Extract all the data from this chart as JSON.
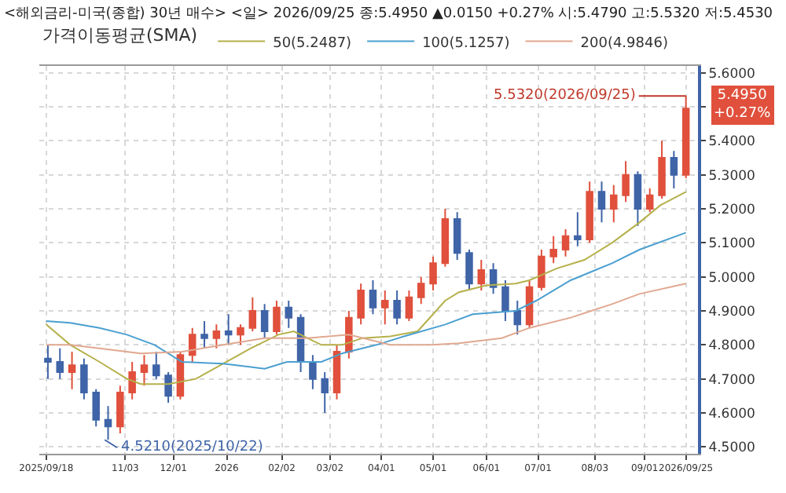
{
  "chart_data": {
    "type": "candlestick",
    "title": "<해외금리-미국(종합) 30년 매수> <일> 2026/09/25 종:5.4950 ▲0.0150 +0.27% 시:5.4790 고:5.5320 저:5.4530",
    "legend_title": "가격이동평균(SMA)",
    "x": [
      "2025-09-19",
      "2025-09-26",
      "2025-10-03",
      "2025-10-10",
      "2025-10-17",
      "2025-10-24",
      "2025-10-31",
      "2025-11-07",
      "2025-11-14",
      "2025-11-21",
      "2025-11-28",
      "2025-12-05",
      "2025-12-12",
      "2025-12-19",
      "2025-12-26",
      "2026-01-02",
      "2026-01-09",
      "2026-01-16",
      "2026-01-23",
      "2026-01-30",
      "2026-02-06",
      "2026-02-13",
      "2026-02-20",
      "2026-02-27",
      "2026-03-06",
      "2026-03-13",
      "2026-03-20",
      "2026-03-27",
      "2026-04-03",
      "2026-04-10",
      "2026-04-17",
      "2026-04-24",
      "2026-05-01",
      "2026-05-08",
      "2026-05-15",
      "2026-05-22",
      "2026-05-29",
      "2026-06-05",
      "2026-06-12",
      "2026-06-19",
      "2026-06-26",
      "2026-07-03",
      "2026-07-10",
      "2026-07-17",
      "2026-07-24",
      "2026-07-31",
      "2026-08-07",
      "2026-08-14",
      "2026-08-21",
      "2026-08-28",
      "2026-09-04",
      "2026-09-11",
      "2026-09-18",
      "2026-09-25"
    ],
    "ohlc": [
      [
        4.76,
        4.8,
        4.7,
        4.75
      ],
      [
        4.75,
        4.79,
        4.7,
        4.72
      ],
      [
        4.72,
        4.78,
        4.67,
        4.74
      ],
      [
        4.74,
        4.76,
        4.64,
        4.66
      ],
      [
        4.66,
        4.67,
        4.56,
        4.58
      ],
      [
        4.58,
        4.62,
        4.521,
        4.56
      ],
      [
        4.56,
        4.68,
        4.54,
        4.66
      ],
      [
        4.66,
        4.75,
        4.64,
        4.72
      ],
      [
        4.72,
        4.77,
        4.68,
        4.74
      ],
      [
        4.74,
        4.78,
        4.7,
        4.71
      ],
      [
        4.71,
        4.72,
        4.63,
        4.65
      ],
      [
        4.65,
        4.78,
        4.64,
        4.77
      ],
      [
        4.77,
        4.85,
        4.75,
        4.83
      ],
      [
        4.83,
        4.87,
        4.79,
        4.82
      ],
      [
        4.82,
        4.86,
        4.79,
        4.84
      ],
      [
        4.84,
        4.89,
        4.8,
        4.83
      ],
      [
        4.83,
        4.86,
        4.8,
        4.85
      ],
      [
        4.85,
        4.94,
        4.84,
        4.9
      ],
      [
        4.9,
        4.92,
        4.82,
        4.84
      ],
      [
        4.84,
        4.93,
        4.83,
        4.91
      ],
      [
        4.91,
        4.93,
        4.85,
        4.88
      ],
      [
        4.88,
        4.89,
        4.72,
        4.75
      ],
      [
        4.75,
        4.77,
        4.67,
        4.7
      ],
      [
        4.7,
        4.72,
        4.6,
        4.66
      ],
      [
        4.66,
        4.8,
        4.64,
        4.78
      ],
      [
        4.78,
        4.9,
        4.76,
        4.88
      ],
      [
        4.88,
        4.98,
        4.86,
        4.96
      ],
      [
        4.96,
        4.99,
        4.89,
        4.91
      ],
      [
        4.91,
        4.96,
        4.86,
        4.93
      ],
      [
        4.93,
        4.96,
        4.86,
        4.88
      ],
      [
        4.88,
        4.96,
        4.87,
        4.94
      ],
      [
        4.94,
        5.0,
        4.92,
        4.98
      ],
      [
        4.98,
        5.06,
        4.96,
        5.04
      ],
      [
        5.04,
        5.2,
        5.03,
        5.17
      ],
      [
        5.17,
        5.19,
        5.05,
        5.07
      ],
      [
        5.07,
        5.08,
        4.96,
        4.98
      ],
      [
        4.98,
        5.05,
        4.96,
        5.02
      ],
      [
        5.02,
        5.04,
        4.95,
        4.97
      ],
      [
        4.97,
        4.99,
        4.87,
        4.9
      ],
      [
        4.9,
        4.93,
        4.83,
        4.86
      ],
      [
        4.86,
        4.99,
        4.85,
        4.97
      ],
      [
        4.97,
        5.08,
        4.96,
        5.06
      ],
      [
        5.06,
        5.12,
        5.04,
        5.08
      ],
      [
        5.08,
        5.14,
        5.06,
        5.12
      ],
      [
        5.12,
        5.19,
        5.09,
        5.11
      ],
      [
        5.11,
        5.28,
        5.1,
        5.25
      ],
      [
        5.25,
        5.28,
        5.16,
        5.2
      ],
      [
        5.2,
        5.27,
        5.16,
        5.24
      ],
      [
        5.24,
        5.34,
        5.22,
        5.3
      ],
      [
        5.3,
        5.31,
        5.15,
        5.2
      ],
      [
        5.2,
        5.26,
        5.19,
        5.24
      ],
      [
        5.24,
        5.4,
        5.23,
        5.35
      ],
      [
        5.35,
        5.37,
        5.26,
        5.3
      ],
      [
        5.3,
        5.532,
        5.29,
        5.495
      ]
    ],
    "colors": [
      "#3f64a8",
      "#3f64a8",
      "#e0503c",
      "#3f64a8",
      "#3f64a8",
      "#3f64a8",
      "#e0503c",
      "#e0503c",
      "#e0503c",
      "#3f64a8",
      "#3f64a8",
      "#e0503c",
      "#e0503c",
      "#3f64a8",
      "#e0503c",
      "#3f64a8",
      "#e0503c",
      "#e0503c",
      "#3f64a8",
      "#e0503c",
      "#3f64a8",
      "#3f64a8",
      "#3f64a8",
      "#3f64a8",
      "#e0503c",
      "#e0503c",
      "#e0503c",
      "#3f64a8",
      "#e0503c",
      "#3f64a8",
      "#e0503c",
      "#e0503c",
      "#e0503c",
      "#e0503c",
      "#3f64a8",
      "#3f64a8",
      "#e0503c",
      "#3f64a8",
      "#3f64a8",
      "#3f64a8",
      "#e0503c",
      "#e0503c",
      "#e0503c",
      "#e0503c",
      "#3f64a8",
      "#e0503c",
      "#3f64a8",
      "#e0503c",
      "#e0503c",
      "#3f64a8",
      "#e0503c",
      "#e0503c",
      "#3f64a8",
      "#e0503c"
    ],
    "series": [
      {
        "type": "line",
        "name": "50(5.2487)",
        "color": "#b5b04a",
        "x": [
          "2025-09-18",
          "2025-10-02",
          "2025-10-19",
          "2025-11-04",
          "2025-11-12",
          "2025-11-28",
          "2025-12-14",
          "2025-12-30",
          "2026-01-15",
          "2026-01-31",
          "2026-02-09",
          "2026-02-25",
          "2026-03-09",
          "2026-03-21",
          "2026-04-06",
          "2026-04-22",
          "2026-05-08",
          "2026-05-16",
          "2026-06-01",
          "2026-06-18",
          "2026-06-26",
          "2026-07-12",
          "2026-07-28",
          "2026-08-13",
          "2026-08-29",
          "2026-09-10",
          "2026-09-25"
        ],
        "values": [
          4.86,
          4.8,
          4.75,
          4.7,
          4.685,
          4.685,
          4.7,
          4.745,
          4.79,
          4.83,
          4.84,
          4.8,
          4.8,
          4.82,
          4.825,
          4.84,
          4.93,
          4.955,
          4.975,
          4.98,
          4.99,
          5.025,
          5.05,
          5.1,
          5.16,
          5.21,
          5.25
        ]
      },
      {
        "type": "line",
        "name": "100(5.1257)",
        "color": "#4a9fd0",
        "x": [
          "2025-09-18",
          "2025-10-02",
          "2025-10-19",
          "2025-11-04",
          "2025-11-20",
          "2025-12-06",
          "2025-12-30",
          "2026-01-15",
          "2026-01-23",
          "2026-02-05",
          "2026-02-25",
          "2026-03-09",
          "2026-03-29",
          "2026-04-14",
          "2026-05-08",
          "2026-05-24",
          "2026-06-18",
          "2026-06-30",
          "2026-07-20",
          "2026-08-13",
          "2026-08-29",
          "2026-09-25"
        ],
        "values": [
          4.87,
          4.865,
          4.85,
          4.83,
          4.8,
          4.75,
          4.745,
          4.735,
          4.73,
          4.75,
          4.75,
          4.775,
          4.8,
          4.825,
          4.86,
          4.89,
          4.9,
          4.93,
          4.99,
          5.04,
          5.08,
          5.13
        ]
      },
      {
        "type": "line",
        "name": "200(4.9846)",
        "color": "#e0a890",
        "x": [
          "2025-09-18",
          "2025-10-02",
          "2025-10-19",
          "2025-11-12",
          "2025-12-06",
          "2025-12-30",
          "2026-01-23",
          "2026-02-17",
          "2026-03-13",
          "2026-04-06",
          "2026-04-30",
          "2026-05-16",
          "2026-06-10",
          "2026-06-26",
          "2026-07-20",
          "2026-08-13",
          "2026-08-29",
          "2026-09-25"
        ],
        "values": [
          4.8,
          4.8,
          4.79,
          4.775,
          4.78,
          4.8,
          4.82,
          4.82,
          4.83,
          4.8,
          4.8,
          4.805,
          4.82,
          4.85,
          4.88,
          4.92,
          4.95,
          4.98
        ]
      }
    ],
    "annotations": [
      {
        "text": "5.5320(2026/09/25)",
        "x": "2026-09-25",
        "y": 5.532
      },
      {
        "text": "4.5210(2025/10/22)",
        "x": "2025-10-22",
        "y": 4.521
      },
      "5.4950\n+0.27%"
    ],
    "xlim": [
      "2025-09-14",
      "2026-10-02"
    ],
    "xticks": [
      {
        "value": "2025-09-18",
        "label": "2025/09/18"
      },
      {
        "value": "2025-11-03",
        "label": "11/03"
      },
      {
        "value": "2025-12-01",
        "label": "12/01"
      },
      {
        "value": "2026-01-01",
        "label": "2026"
      },
      {
        "value": "2026-02-02",
        "label": "02/02"
      },
      {
        "value": "2026-03-02",
        "label": "03/02"
      },
      {
        "value": "2026-04-01",
        "label": "04/01"
      },
      {
        "value": "2026-05-01",
        "label": "05/01"
      },
      {
        "value": "2026-06-01",
        "label": "06/01"
      },
      {
        "value": "2026-07-01",
        "label": "07/01"
      },
      {
        "value": "2026-08-03",
        "label": "08/03"
      },
      {
        "value": "2026-09-01",
        "label": "09/01"
      },
      {
        "value": "2026-09-25",
        "label": "2026/09/25"
      }
    ],
    "ylim": [
      4.48,
      5.62
    ],
    "yticks": [
      {
        "value": 4.5,
        "label": "4.5000"
      },
      {
        "value": 4.6,
        "label": "4.6000"
      },
      {
        "value": 4.7,
        "label": "4.7000"
      },
      {
        "value": 4.8,
        "label": "4.8000"
      },
      {
        "value": 4.9,
        "label": "4.9000"
      },
      {
        "value": 5.0,
        "label": "5.0000"
      },
      {
        "value": 5.1,
        "label": "5.1000"
      },
      {
        "value": 5.2,
        "label": "5.2000"
      },
      {
        "value": 5.3,
        "label": "5.3000"
      },
      {
        "value": 5.4,
        "label": "5.4000"
      },
      {
        "value": 5.5,
        "label": null
      },
      {
        "value": 5.6,
        "label": "5.6000"
      }
    ],
    "grid": true,
    "legend": "top",
    "line_style": "solid",
    "marker": "none"
  }
}
